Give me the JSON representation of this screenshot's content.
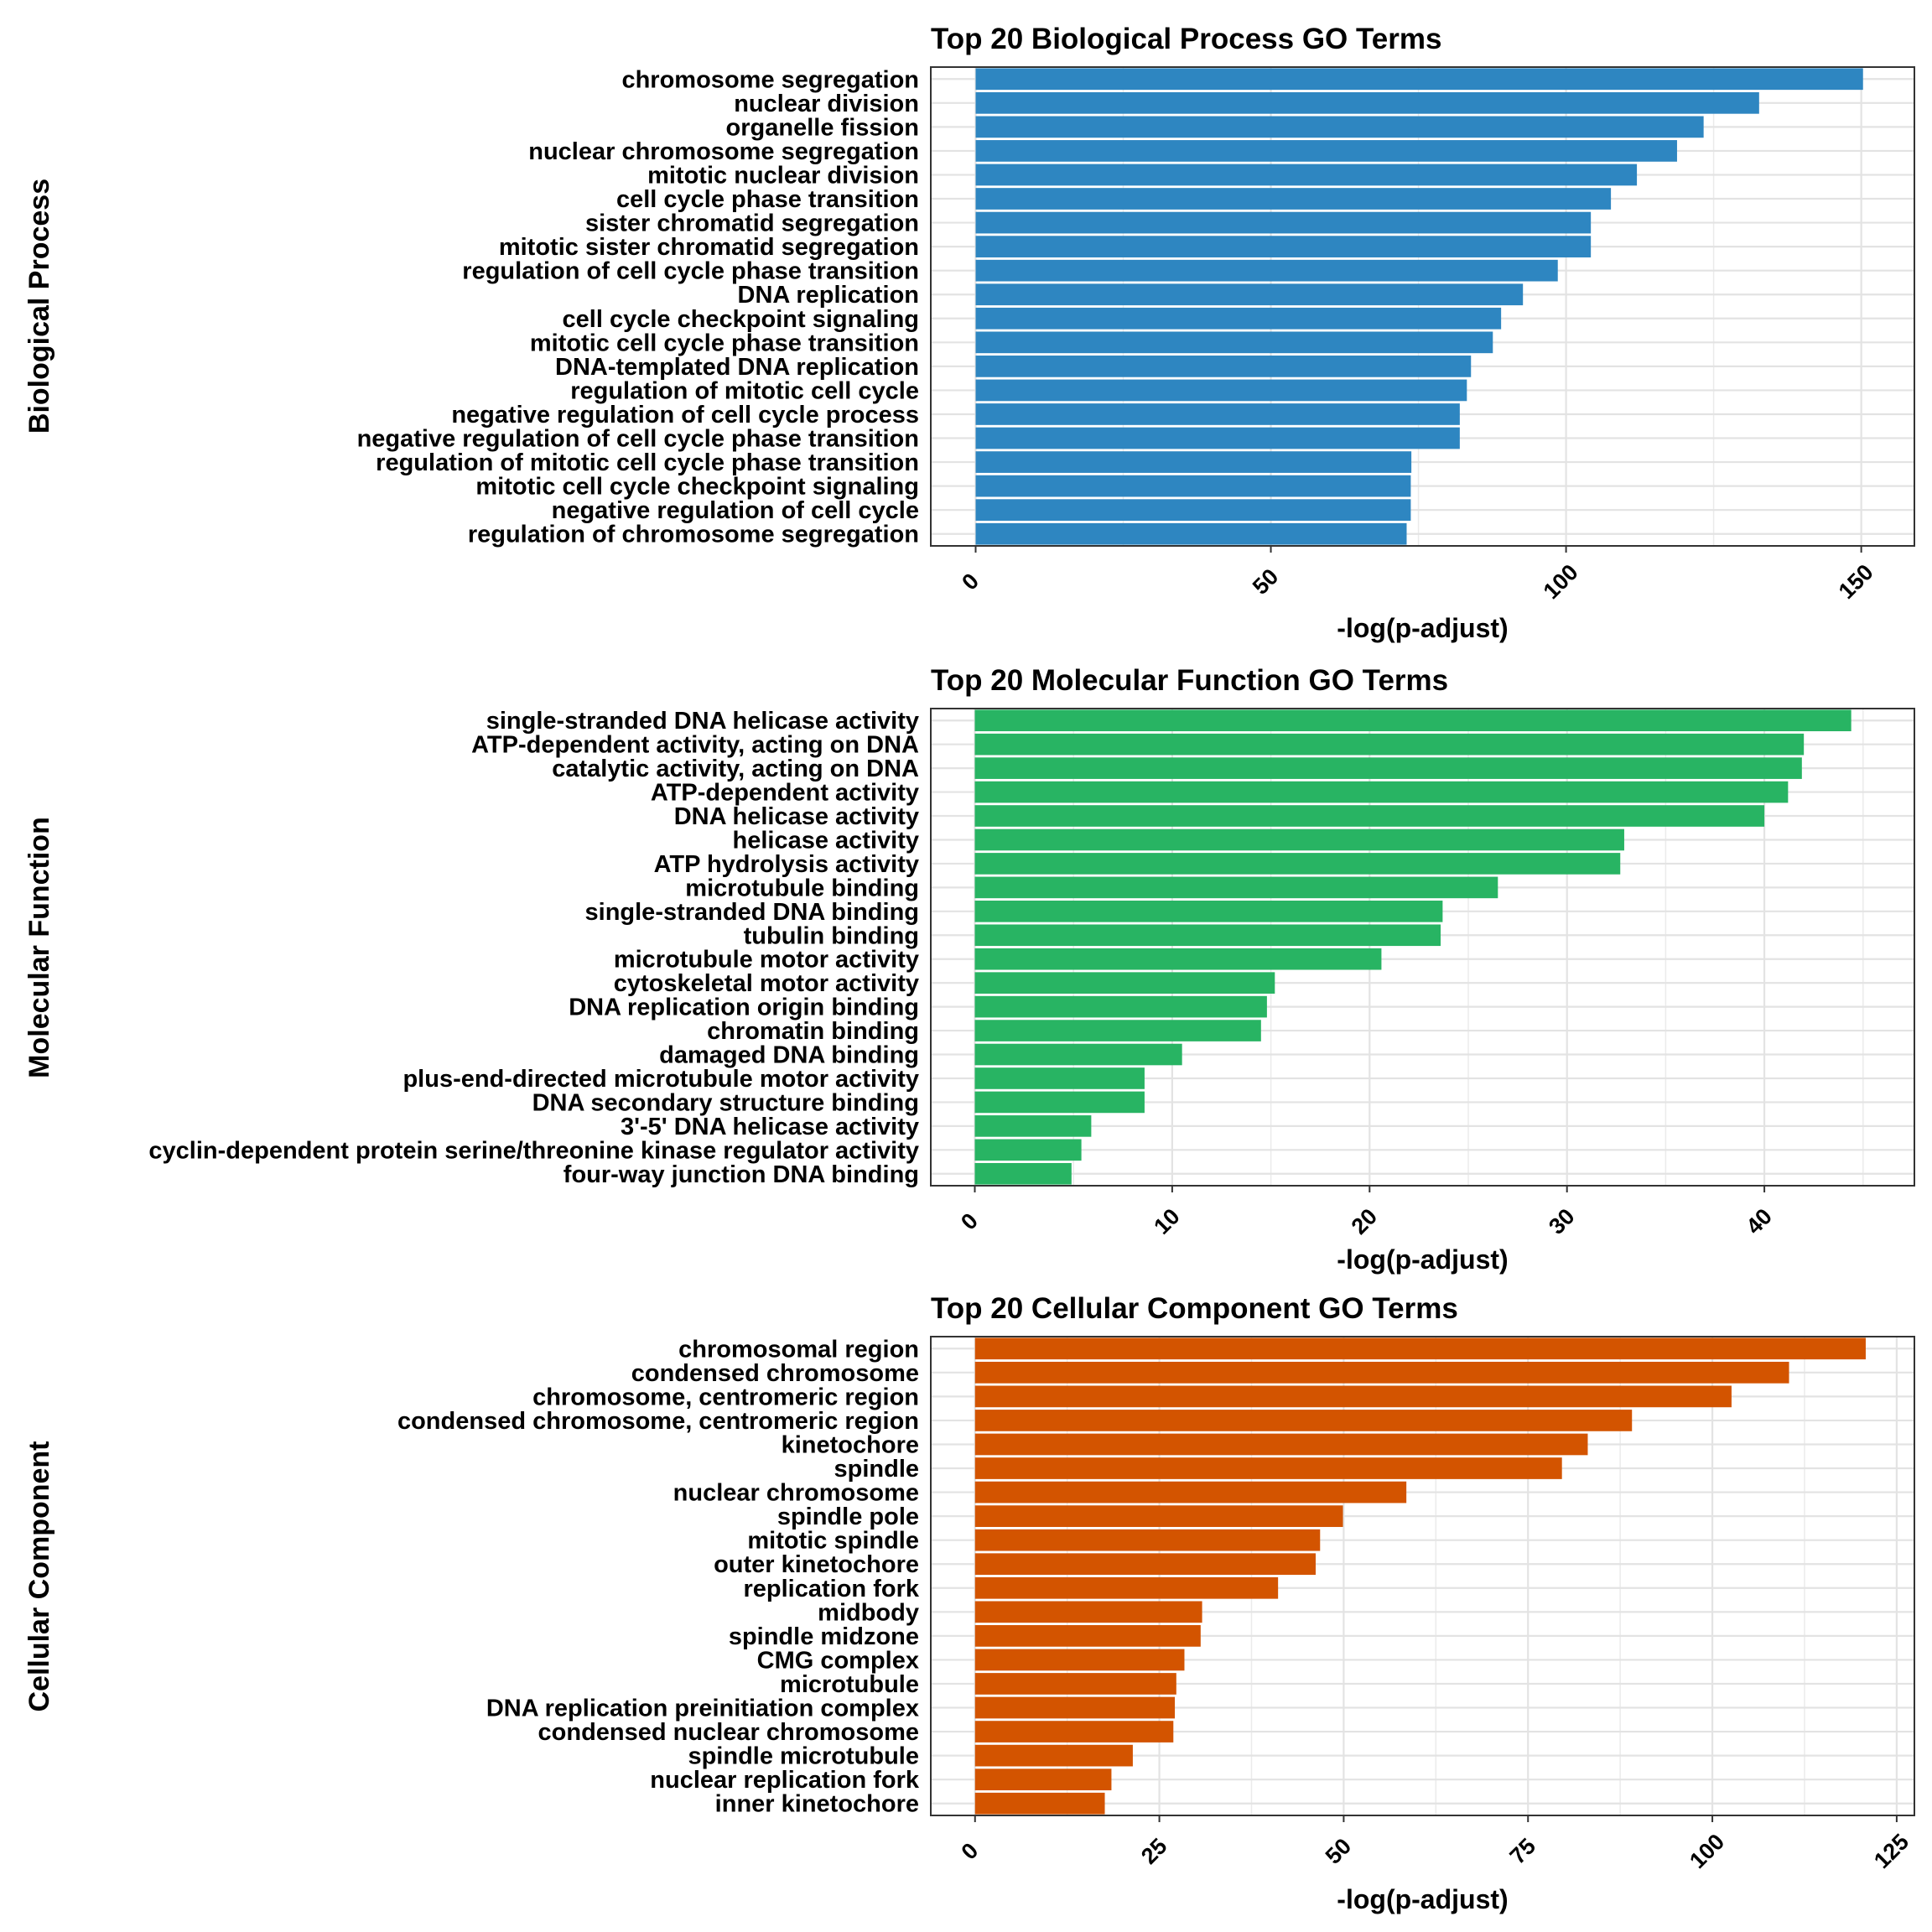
{
  "chart_data": [
    {
      "type": "bar",
      "orientation": "horizontal",
      "title": "Top 20 Biological Process GO Terms",
      "ylabel": "Biological Process",
      "xlabel": "-log(p-adjust)",
      "color": "#2E86C1",
      "xlim": [
        -7.6,
        159
      ],
      "xticks": [
        0,
        50,
        100,
        150
      ],
      "xminor": [
        25,
        75,
        125
      ],
      "grid": true,
      "categories": [
        "chromosome segregation",
        "nuclear division",
        "organelle fission",
        "nuclear chromosome segregation",
        "mitotic nuclear division",
        "cell cycle phase transition",
        "sister chromatid segregation",
        "mitotic sister chromatid segregation",
        "regulation of cell cycle phase transition",
        "DNA replication",
        "cell cycle checkpoint signaling",
        "mitotic cell cycle phase transition",
        "DNA-templated DNA replication",
        "regulation of mitotic cell cycle",
        "negative regulation of cell cycle process",
        "negative regulation of cell cycle phase transition",
        "regulation of mitotic cell cycle phase transition",
        "mitotic cell cycle checkpoint signaling",
        "negative regulation of cell cycle",
        "regulation of chromosome segregation"
      ],
      "values": [
        150.3,
        132.7,
        123.3,
        118.8,
        112.0,
        107.6,
        104.2,
        104.2,
        98.6,
        92.7,
        89.0,
        87.6,
        83.9,
        83.2,
        82.0,
        82.0,
        73.8,
        73.7,
        73.7,
        73.0
      ]
    },
    {
      "type": "bar",
      "orientation": "horizontal",
      "title": "Top 20 Molecular Function GO Terms",
      "ylabel": "Molecular Function",
      "xlabel": "-log(p-adjust)",
      "color": "#28B463",
      "xlim": [
        -2.23,
        47.6
      ],
      "xticks": [
        0,
        10,
        20,
        30,
        40
      ],
      "xminor": [
        5,
        15,
        25,
        35,
        45
      ],
      "grid": true,
      "categories": [
        "single-stranded DNA helicase activity",
        "ATP-dependent activity, acting on DNA",
        "catalytic activity, acting on DNA",
        "ATP-dependent activity",
        "DNA helicase activity",
        "helicase activity",
        "ATP hydrolysis activity",
        "microtubule binding",
        "single-stranded DNA binding",
        "tubulin binding",
        "microtubule motor activity",
        "cytoskeletal motor activity",
        "DNA replication origin binding",
        "chromatin binding",
        "damaged DNA binding",
        "plus-end-directed microtubule motor activity",
        "DNA secondary structure binding",
        "3'-5' DNA helicase activity",
        "cyclin-dependent protein serine/threonine kinase regulator activity",
        "four-way junction DNA binding"
      ],
      "values": [
        44.4,
        42.0,
        41.9,
        41.2,
        40.0,
        32.9,
        32.7,
        26.5,
        23.7,
        23.6,
        20.6,
        15.2,
        14.8,
        14.5,
        10.5,
        8.6,
        8.6,
        5.9,
        5.4,
        4.9
      ]
    },
    {
      "type": "bar",
      "orientation": "horizontal",
      "title": "Top 20 Cellular Component GO Terms",
      "ylabel": "Cellular Component",
      "xlabel": "-log(p-adjust)",
      "color": "#D35400",
      "xlim": [
        -6.0,
        127.4
      ],
      "xticks": [
        0,
        25,
        50,
        75,
        100,
        125
      ],
      "xminor": [
        12.5,
        37.5,
        62.5,
        87.5,
        112.5
      ],
      "grid": true,
      "categories": [
        "chromosomal region",
        "condensed chromosome",
        "chromosome, centromeric region",
        "condensed chromosome, centromeric region",
        "kinetochore",
        "spindle",
        "nuclear chromosome",
        "spindle pole",
        "mitotic spindle",
        "outer kinetochore",
        "replication fork",
        "midbody",
        "spindle midzone",
        "CMG complex",
        "microtubule",
        "DNA replication preinitiation complex",
        "condensed nuclear chromosome",
        "spindle microtubule",
        "nuclear replication fork",
        "inner kinetochore"
      ],
      "values": [
        120.8,
        110.4,
        102.6,
        89.1,
        83.1,
        79.6,
        58.5,
        49.9,
        46.8,
        46.2,
        41.1,
        30.8,
        30.6,
        28.4,
        27.3,
        27.1,
        26.9,
        21.4,
        18.5,
        17.6
      ]
    }
  ]
}
